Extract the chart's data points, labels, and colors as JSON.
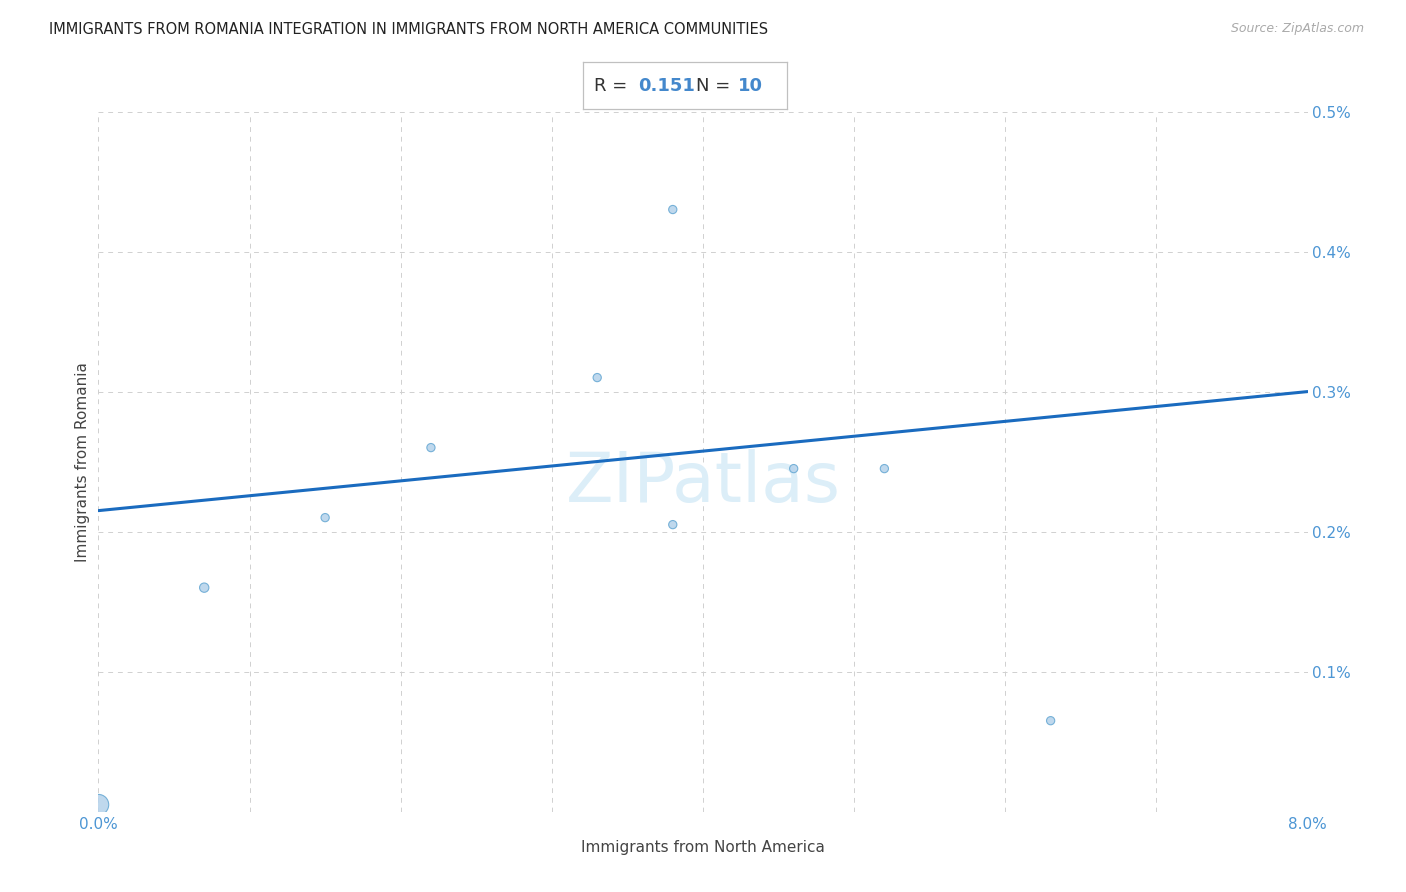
{
  "title": "IMMIGRANTS FROM ROMANIA INTEGRATION IN IMMIGRANTS FROM NORTH AMERICA COMMUNITIES",
  "source": "Source: ZipAtlas.com",
  "xlabel": "Immigrants from North America",
  "ylabel": "Immigrants from Romania",
  "R_val": "0.151",
  "N_val": "10",
  "xlim": [
    0.0,
    0.08
  ],
  "ylim": [
    0.0,
    0.005
  ],
  "xtick_positions": [
    0.0,
    0.01,
    0.02,
    0.03,
    0.04,
    0.05,
    0.06,
    0.07,
    0.08
  ],
  "xtick_labels": [
    "0.0%",
    "",
    "",
    "",
    "",
    "",
    "",
    "",
    "8.0%"
  ],
  "ytick_positions": [
    0.0,
    0.001,
    0.002,
    0.003,
    0.004,
    0.005
  ],
  "ytick_labels": [
    "",
    "0.1%",
    "0.2%",
    "0.3%",
    "0.4%",
    "0.5%"
  ],
  "scatter_x": [
    0.0,
    0.007,
    0.015,
    0.022,
    0.033,
    0.038,
    0.046,
    0.052,
    0.063,
    0.038
  ],
  "scatter_y": [
    5e-05,
    0.0016,
    0.0021,
    0.0026,
    0.0031,
    0.0043,
    0.00245,
    0.00245,
    0.00065,
    0.00205
  ],
  "scatter_s": [
    220,
    45,
    35,
    35,
    35,
    35,
    35,
    35,
    35,
    35
  ],
  "line_x0": 0.0,
  "line_x1": 0.08,
  "line_y0": 0.00215,
  "line_y1": 0.003,
  "scatter_color": "#b8d4ec",
  "scatter_edge": "#6aaad4",
  "line_color": "#1a6bbf",
  "grid_color": "#d0d0d0",
  "tick_color": "#4d96d4",
  "title_color": "#222222",
  "source_color": "#aaaaaa",
  "xlabel_color": "#444444",
  "ylabel_color": "#444444",
  "watermark": "ZIPatlas",
  "watermark_color": "#dceef8"
}
